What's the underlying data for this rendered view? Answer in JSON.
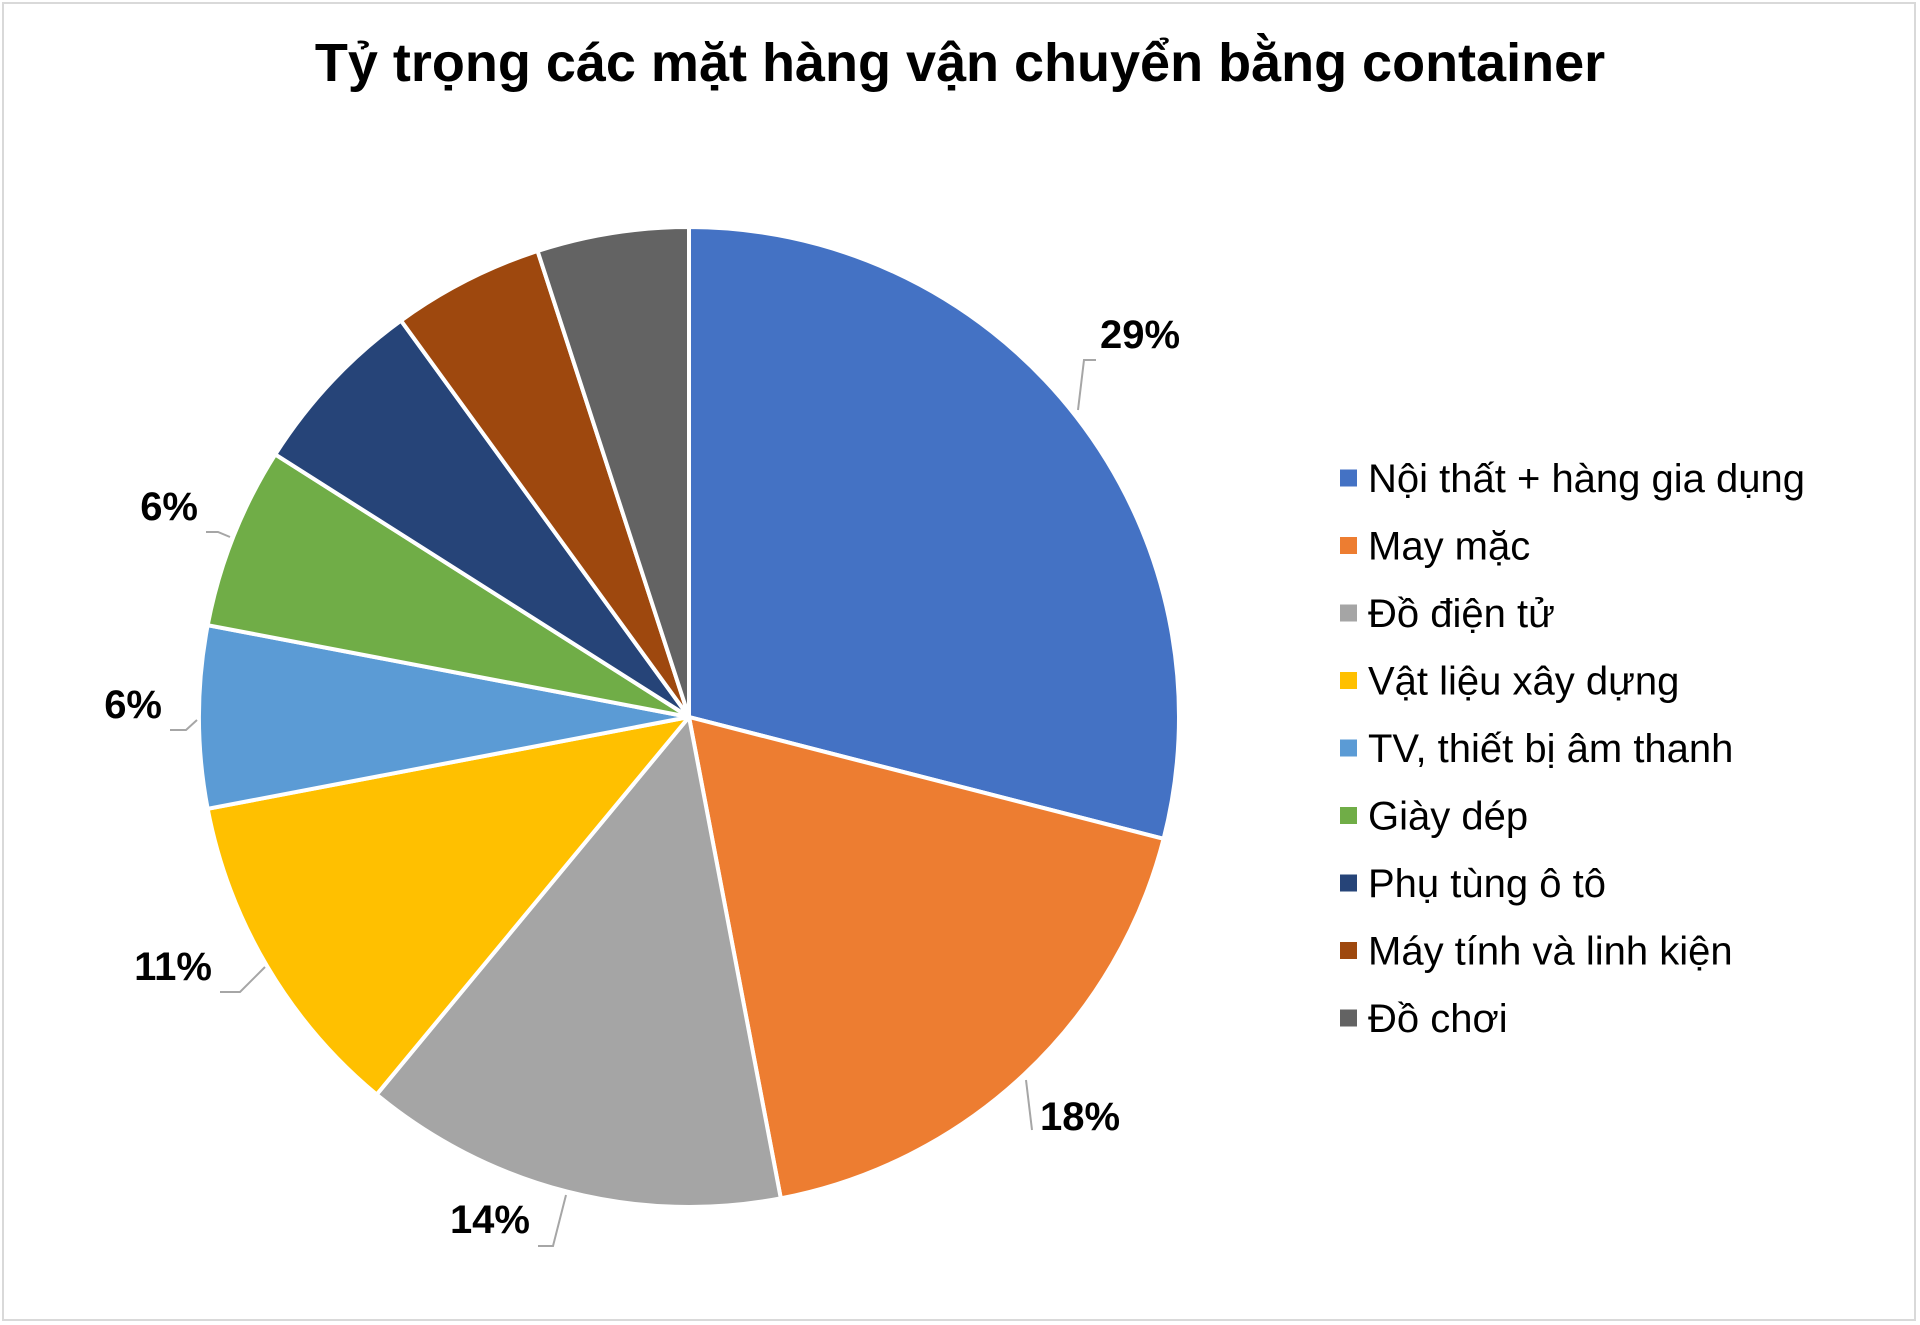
{
  "chart_data": {
    "type": "pie",
    "title": "Tỷ trọng các mặt hàng vận chuyển bằng container",
    "legend_position": "right",
    "slices": [
      {
        "label": "Nội thất + hàng gia dụng",
        "value": 29,
        "display": "29%",
        "color": "#4472C4"
      },
      {
        "label": "May mặc",
        "value": 18,
        "display": "18%",
        "color": "#ED7D31"
      },
      {
        "label": "Đồ điện tử",
        "value": 14,
        "display": "14%",
        "color": "#A5A5A5"
      },
      {
        "label": "Vật liệu xây dựng",
        "value": 11,
        "display": "11%",
        "color": "#FFC000"
      },
      {
        "label": "TV, thiết bị âm thanh",
        "value": 6,
        "display": "6%",
        "color": "#5B9BD5"
      },
      {
        "label": "Giày dép",
        "value": 6,
        "display": "6%",
        "color": "#70AD47"
      },
      {
        "label": "Phụ tùng ô tô",
        "value": 6,
        "display": "",
        "color": "#264478"
      },
      {
        "label": "Máy tính và linh kiện",
        "value": 5,
        "display": "",
        "color": "#9E480E"
      },
      {
        "label": "Đồ chơi",
        "value": 5,
        "display": "",
        "color": "#636363"
      }
    ]
  }
}
